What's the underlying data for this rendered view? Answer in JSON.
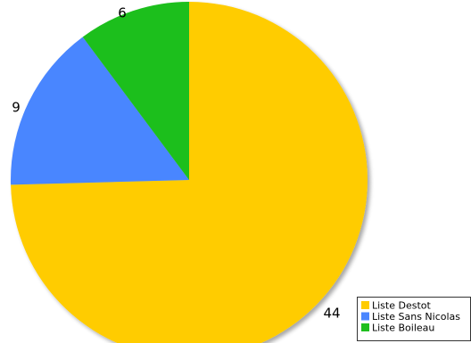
{
  "chart_data": {
    "type": "pie",
    "title": "",
    "start_angle_deg": 0,
    "direction": "clockwise",
    "legend_position": "bottom-right",
    "slices": [
      {
        "label": "Liste Destot",
        "value": 44,
        "color": "#ffcc00",
        "value_label": "44"
      },
      {
        "label": "Liste Sans Nicolas",
        "value": 9,
        "color": "#4a86ff",
        "value_label": "9"
      },
      {
        "label": "Liste Boileau",
        "value": 6,
        "color": "#1fbf1f",
        "value_label": "6"
      }
    ]
  }
}
